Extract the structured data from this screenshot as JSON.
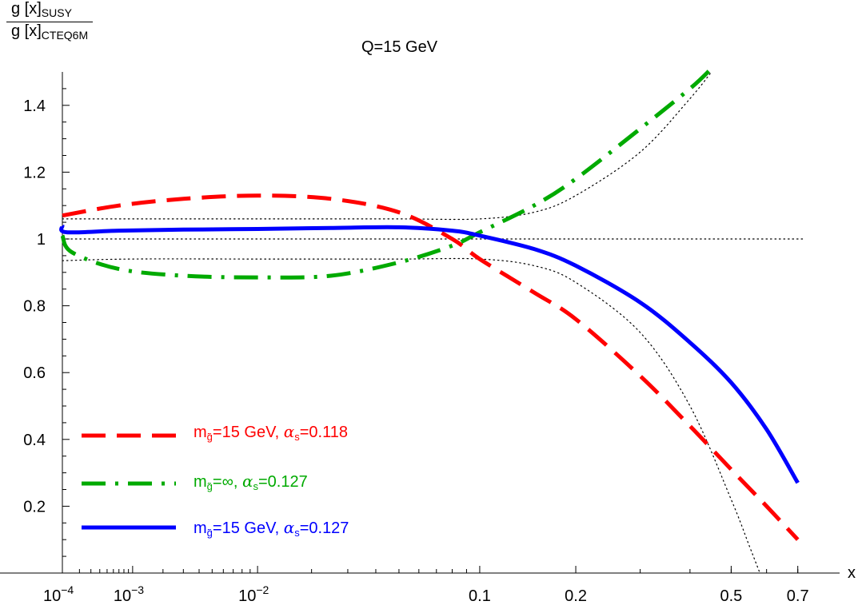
{
  "chart_data": {
    "type": "line",
    "title": "Q=15 GeV",
    "xlabel": "x",
    "ylabel": {
      "numerator": "g [x]",
      "numerator_sub": "SUSY",
      "denominator": "g [x]",
      "denominator_sub": "CTEQ6M"
    },
    "xscale": "x^0.25",
    "xlim": [
      0.0001,
      0.72
    ],
    "ylim": [
      0.0,
      1.5
    ],
    "x_ticks": [
      {
        "x": 0.0001,
        "label": "10",
        "sup": "−4"
      },
      {
        "x": 0.001,
        "label": "10",
        "sup": "−3"
      },
      {
        "x": 0.01,
        "label": "10",
        "sup": "−2"
      },
      {
        "x": 0.1,
        "label": "0.1"
      },
      {
        "x": 0.2,
        "label": "0.2"
      },
      {
        "x": 0.5,
        "label": "0.5"
      },
      {
        "x": 0.7,
        "label": "0.7"
      }
    ],
    "y_ticks": [
      {
        "y": 0.2,
        "label": "0.2"
      },
      {
        "y": 0.4,
        "label": "0.4"
      },
      {
        "y": 0.6,
        "label": "0.6"
      },
      {
        "y": 0.8,
        "label": "0.8"
      },
      {
        "y": 1.0,
        "label": "1"
      },
      {
        "y": 1.2,
        "label": "1.2"
      },
      {
        "y": 1.4,
        "label": "1.4"
      }
    ],
    "grid": false,
    "legend_position": "bottom-left",
    "series": [
      {
        "name": "m=15 GeV, α=0.118",
        "color": "#ff0000",
        "style": "dashed",
        "x": [
          0.0001,
          0.0007,
          0.003,
          0.01,
          0.025,
          0.05,
          0.08,
          0.1,
          0.15,
          0.2,
          0.3,
          0.4,
          0.5,
          0.6,
          0.7
        ],
        "y": [
          1.07,
          1.1,
          1.12,
          1.13,
          1.12,
          1.08,
          1.0,
          0.94,
          0.84,
          0.76,
          0.59,
          0.44,
          0.31,
          0.2,
          0.1
        ]
      },
      {
        "name": "m=∞, α=0.127",
        "color": "#00aa00",
        "style": "dashdot",
        "x": [
          0.0001,
          0.00015,
          0.0007,
          0.003,
          0.01,
          0.025,
          0.05,
          0.08,
          0.1,
          0.15,
          0.2,
          0.3,
          0.4,
          0.45
        ],
        "y": [
          1.01,
          0.96,
          0.91,
          0.89,
          0.885,
          0.89,
          0.93,
          0.98,
          1.02,
          1.1,
          1.18,
          1.33,
          1.45,
          1.51
        ]
      },
      {
        "name": "m=15 GeV, α=0.127",
        "color": "#0000ff",
        "style": "solid",
        "x": [
          0.0001,
          0.00012,
          0.0007,
          0.003,
          0.01,
          0.025,
          0.05,
          0.08,
          0.1,
          0.15,
          0.2,
          0.3,
          0.4,
          0.5,
          0.6,
          0.7
        ],
        "y": [
          1.04,
          1.02,
          1.025,
          1.028,
          1.03,
          1.033,
          1.035,
          1.025,
          1.01,
          0.97,
          0.92,
          0.81,
          0.69,
          0.57,
          0.43,
          0.27
        ]
      },
      {
        "color": "#000000",
        "style": "dotted",
        "x": [
          0.0001,
          0.1,
          0.72
        ],
        "y": [
          1.0,
          1.0,
          1.0
        ]
      },
      {
        "color": "#000000",
        "style": "dotted",
        "x": [
          0.0001,
          0.001,
          0.01,
          0.05,
          0.1,
          0.15,
          0.2,
          0.3,
          0.4,
          0.45
        ],
        "y": [
          1.06,
          1.06,
          1.06,
          1.06,
          1.06,
          1.08,
          1.13,
          1.26,
          1.42,
          1.5
        ]
      },
      {
        "color": "#000000",
        "style": "dotted",
        "x": [
          0.0001,
          0.001,
          0.01,
          0.05,
          0.1,
          0.15,
          0.2,
          0.3,
          0.4,
          0.5,
          0.55,
          0.58
        ],
        "y": [
          0.935,
          0.94,
          0.94,
          0.94,
          0.94,
          0.92,
          0.87,
          0.72,
          0.5,
          0.22,
          0.08,
          0.0
        ]
      }
    ],
    "legend": [
      {
        "series": 0,
        "m": "m",
        "m_sub": "g̃",
        "mid": "=15 GeV, ",
        "alpha": "α",
        "alpha_sub": "s",
        "value": "=0.118"
      },
      {
        "series": 1,
        "m": "m",
        "m_sub": "g̃",
        "mid": "=∞, ",
        "alpha": "α",
        "alpha_sub": "s",
        "value": "=0.127"
      },
      {
        "series": 2,
        "m": "m",
        "m_sub": "g̃",
        "mid": "=15 GeV, ",
        "alpha": "α",
        "alpha_sub": "s",
        "value": "=0.127"
      }
    ]
  }
}
